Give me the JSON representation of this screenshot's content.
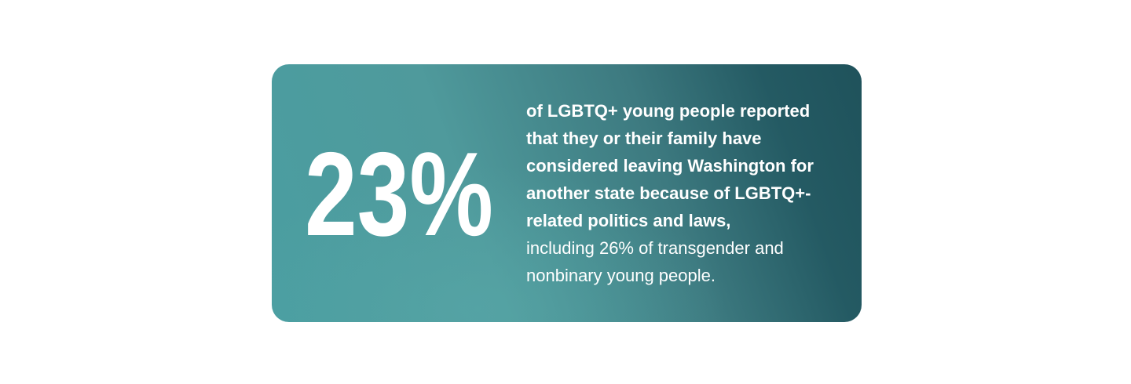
{
  "stat": {
    "value": "23%",
    "bold_text": "of LGBTQ+ young people reported that they or their family have considered leaving Washington for another state because of LGBTQ+-related politics and laws,",
    "regular_text": "including 26% of transgender and nonbinary young people."
  }
}
